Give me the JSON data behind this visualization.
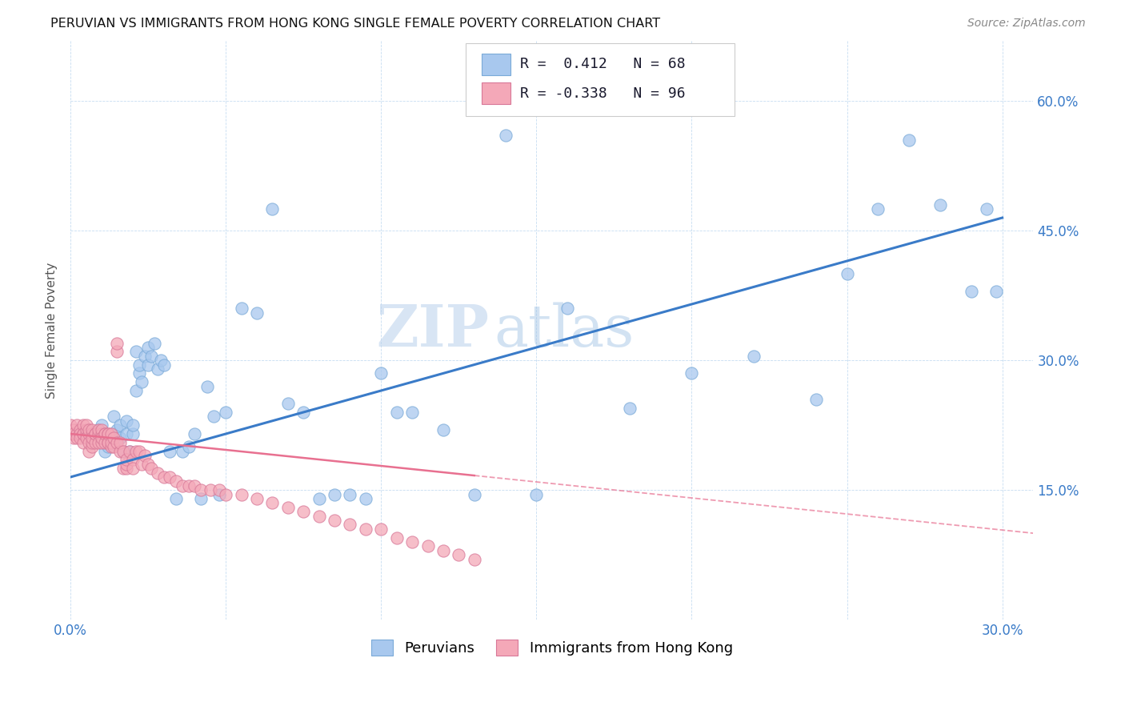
{
  "title": "PERUVIAN VS IMMIGRANTS FROM HONG KONG SINGLE FEMALE POVERTY CORRELATION CHART",
  "source": "Source: ZipAtlas.com",
  "ylabel": "Single Female Poverty",
  "xlim": [
    0.0,
    0.31
  ],
  "ylim": [
    0.0,
    0.67
  ],
  "R1": 0.412,
  "N1": 68,
  "R2": -0.338,
  "N2": 96,
  "color_blue": "#A8C8EE",
  "color_pink": "#F4A8B8",
  "color_line_blue": "#3A7BC8",
  "color_line_pink": "#E87090",
  "legend_label1": "Peruvians",
  "legend_label2": "Immigrants from Hong Kong",
  "watermark_zip": "ZIP",
  "watermark_atlas": "atlas",
  "blue_line_x": [
    0.0,
    0.3
  ],
  "blue_line_y": [
    0.165,
    0.465
  ],
  "pink_line_x0": 0.0,
  "pink_line_y0": 0.215,
  "pink_line_x1": 0.31,
  "pink_line_y1": 0.1,
  "pink_line_solid_x1": 0.13,
  "pink_line_solid_y1": 0.165,
  "blue_x": [
    0.005,
    0.008,
    0.009,
    0.01,
    0.011,
    0.012,
    0.013,
    0.014,
    0.015,
    0.016,
    0.016,
    0.017,
    0.018,
    0.018,
    0.019,
    0.02,
    0.02,
    0.021,
    0.021,
    0.022,
    0.022,
    0.023,
    0.024,
    0.025,
    0.025,
    0.026,
    0.027,
    0.028,
    0.029,
    0.03,
    0.032,
    0.034,
    0.036,
    0.038,
    0.04,
    0.042,
    0.044,
    0.046,
    0.048,
    0.05,
    0.055,
    0.06,
    0.065,
    0.07,
    0.075,
    0.08,
    0.085,
    0.09,
    0.095,
    0.1,
    0.105,
    0.11,
    0.12,
    0.13,
    0.14,
    0.15,
    0.16,
    0.18,
    0.2,
    0.22,
    0.24,
    0.25,
    0.26,
    0.27,
    0.28,
    0.29,
    0.295,
    0.298
  ],
  "blue_y": [
    0.215,
    0.21,
    0.22,
    0.225,
    0.195,
    0.2,
    0.215,
    0.235,
    0.22,
    0.21,
    0.225,
    0.195,
    0.215,
    0.23,
    0.195,
    0.215,
    0.225,
    0.31,
    0.265,
    0.285,
    0.295,
    0.275,
    0.305,
    0.295,
    0.315,
    0.305,
    0.32,
    0.29,
    0.3,
    0.295,
    0.195,
    0.14,
    0.195,
    0.2,
    0.215,
    0.14,
    0.27,
    0.235,
    0.145,
    0.24,
    0.36,
    0.355,
    0.475,
    0.25,
    0.24,
    0.14,
    0.145,
    0.145,
    0.14,
    0.285,
    0.24,
    0.24,
    0.22,
    0.145,
    0.56,
    0.145,
    0.36,
    0.245,
    0.285,
    0.305,
    0.255,
    0.4,
    0.475,
    0.555,
    0.48,
    0.38,
    0.475,
    0.38
  ],
  "pink_x": [
    0.0,
    0.0,
    0.001,
    0.001,
    0.001,
    0.002,
    0.002,
    0.002,
    0.003,
    0.003,
    0.003,
    0.004,
    0.004,
    0.004,
    0.004,
    0.005,
    0.005,
    0.005,
    0.005,
    0.006,
    0.006,
    0.006,
    0.006,
    0.007,
    0.007,
    0.007,
    0.007,
    0.007,
    0.008,
    0.008,
    0.008,
    0.009,
    0.009,
    0.009,
    0.01,
    0.01,
    0.01,
    0.01,
    0.011,
    0.011,
    0.011,
    0.012,
    0.012,
    0.012,
    0.012,
    0.013,
    0.013,
    0.013,
    0.014,
    0.014,
    0.015,
    0.015,
    0.015,
    0.016,
    0.016,
    0.017,
    0.017,
    0.018,
    0.018,
    0.018,
    0.019,
    0.02,
    0.02,
    0.021,
    0.022,
    0.023,
    0.024,
    0.025,
    0.026,
    0.028,
    0.03,
    0.032,
    0.034,
    0.036,
    0.038,
    0.04,
    0.042,
    0.045,
    0.048,
    0.05,
    0.055,
    0.06,
    0.065,
    0.07,
    0.075,
    0.08,
    0.085,
    0.09,
    0.095,
    0.1,
    0.105,
    0.11,
    0.115,
    0.12,
    0.125,
    0.13
  ],
  "pink_y": [
    0.215,
    0.225,
    0.21,
    0.22,
    0.215,
    0.215,
    0.225,
    0.21,
    0.22,
    0.215,
    0.21,
    0.215,
    0.225,
    0.205,
    0.215,
    0.215,
    0.22,
    0.21,
    0.225,
    0.195,
    0.215,
    0.205,
    0.22,
    0.2,
    0.215,
    0.205,
    0.22,
    0.21,
    0.215,
    0.205,
    0.215,
    0.215,
    0.205,
    0.22,
    0.215,
    0.205,
    0.22,
    0.21,
    0.215,
    0.205,
    0.215,
    0.205,
    0.215,
    0.205,
    0.215,
    0.2,
    0.215,
    0.205,
    0.2,
    0.21,
    0.31,
    0.205,
    0.32,
    0.195,
    0.205,
    0.175,
    0.195,
    0.175,
    0.18,
    0.185,
    0.195,
    0.185,
    0.175,
    0.195,
    0.195,
    0.18,
    0.19,
    0.18,
    0.175,
    0.17,
    0.165,
    0.165,
    0.16,
    0.155,
    0.155,
    0.155,
    0.15,
    0.15,
    0.15,
    0.145,
    0.145,
    0.14,
    0.135,
    0.13,
    0.125,
    0.12,
    0.115,
    0.11,
    0.105,
    0.105,
    0.095,
    0.09,
    0.085,
    0.08,
    0.075,
    0.07
  ]
}
